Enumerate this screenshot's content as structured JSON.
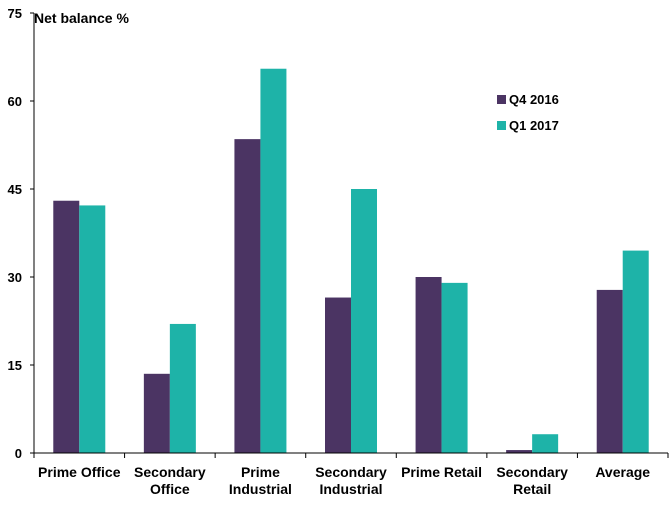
{
  "chart_data": {
    "type": "bar",
    "ylabel": "Net balance %",
    "ylim": [
      0,
      75
    ],
    "yticks": [
      0,
      15,
      30,
      45,
      60,
      75
    ],
    "grid": false,
    "legend_position": "top-right",
    "categories": [
      [
        "Prime Office"
      ],
      [
        "Secondary",
        "Office"
      ],
      [
        "Prime",
        "Industrial"
      ],
      [
        "Secondary",
        "Industrial"
      ],
      [
        "Prime Retail"
      ],
      [
        "Secondary",
        "Retail"
      ],
      [
        "Average"
      ]
    ],
    "series": [
      {
        "name": "Q4 2016",
        "color": "#4b3463",
        "values": [
          43.0,
          13.5,
          53.5,
          26.5,
          30.0,
          0.5,
          27.8
        ]
      },
      {
        "name": "Q1 2017",
        "color": "#1eb3a8",
        "values": [
          42.2,
          22.0,
          65.5,
          45.0,
          29.0,
          3.2,
          34.5
        ]
      }
    ]
  }
}
